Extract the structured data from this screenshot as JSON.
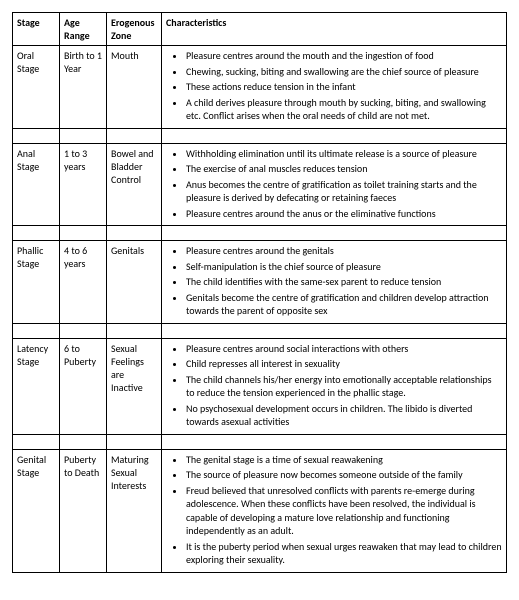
{
  "headers": {
    "stage": "Stage",
    "age": "Age Range",
    "zone": "Erogenous Zone",
    "char": "Characteristics"
  },
  "rows": [
    {
      "stage": "Oral Stage",
      "age": "Birth to 1 Year",
      "zone": "Mouth",
      "items": [
        "Pleasure centres around the mouth and the ingestion of food",
        "Chewing, sucking, biting and swallowing are the chief source of pleasure",
        "These actions reduce tension in the infant",
        "A child derives pleasure through mouth by sucking, biting, and swallowing etc. Conflict arises when the oral needs of child are not met."
      ]
    },
    {
      "stage": "Anal Stage",
      "age": "1 to 3 years",
      "zone": "Bowel and Bladder Control",
      "items": [
        "Withholding elimination until its ultimate release is a source of pleasure",
        "The exercise of anal muscles reduces tension",
        "Anus becomes the centre of gratification as toilet training starts and the pleasure is derived by defecating or retaining faeces",
        "Pleasure centres around the anus or the eliminative functions"
      ]
    },
    {
      "stage": "Phallic Stage",
      "age": "4 to 6 years",
      "zone": "Genitals",
      "items": [
        "Pleasure centres around the genitals",
        "Self-manipulation is the chief source of pleasure",
        "The child identifies with the same-sex parent to reduce tension",
        "Genitals become the centre of gratification and children develop attraction towards the parent of opposite sex"
      ]
    },
    {
      "stage": "Latency Stage",
      "age": "6 to Puberty",
      "zone": "Sexual Feelings are Inactive",
      "items": [
        "Pleasure centres around social interactions with others",
        "Child represses all interest in sexuality",
        "The child channels his/her energy into emotionally acceptable relationships to reduce the tension experienced in the phallic stage.",
        "No psychosexual development occurs in children. The libido is diverted towards asexual activities"
      ]
    },
    {
      "stage": "Genital Stage",
      "age": "Puberty to Death",
      "zone": "Maturing Sexual Interests",
      "items": [
        "The genital stage is a time of sexual reawakening",
        "The source of pleasure now becomes someone outside of the family",
        "Freud believed that unresolved conflicts with parents re-emerge during adolescence. When these conflicts have been resolved, the individual is capable of developing a mature love relationship and functioning independently as an adult.",
        "It is the puberty period when sexual urges reawaken that may lead to children exploring their sexuality."
      ]
    }
  ]
}
